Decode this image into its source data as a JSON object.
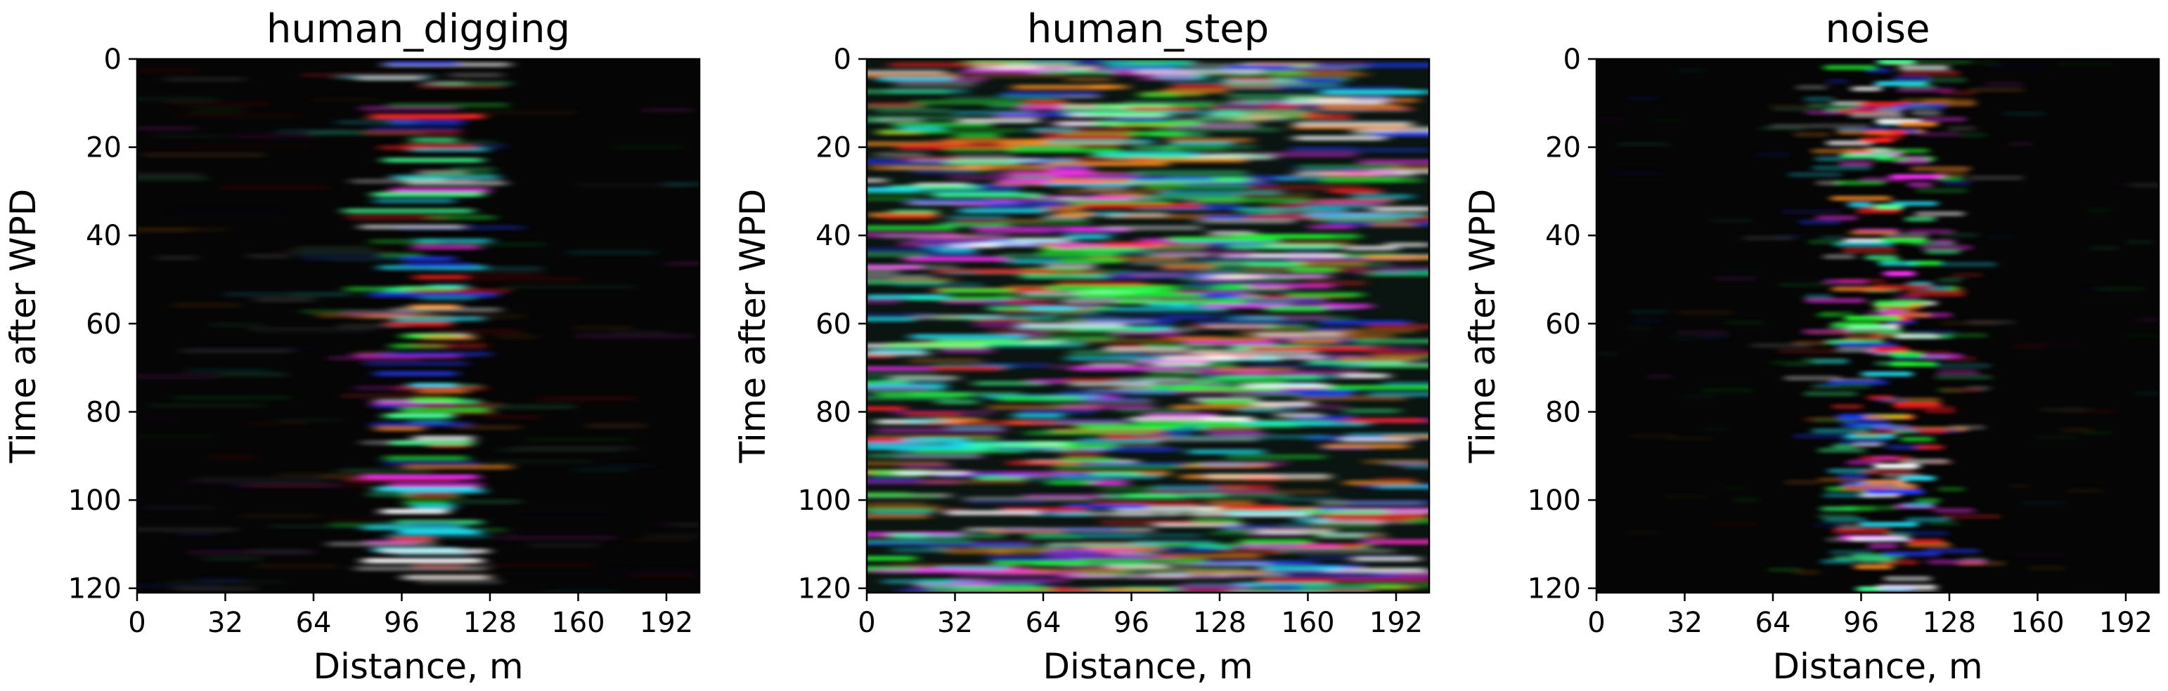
{
  "chart_data": [
    {
      "type": "heatmap",
      "title": "human_digging",
      "xlabel": "Distance, m",
      "ylabel": "Time after WPD",
      "xlim": [
        0,
        204
      ],
      "ylim": [
        121,
        0
      ],
      "xticks": [
        "0",
        "32",
        "64",
        "96",
        "128",
        "160",
        "192"
      ],
      "yticks": [
        "0",
        "20",
        "40",
        "60",
        "80",
        "100",
        "120"
      ],
      "pattern": "bright narrow column centered near 96-112 m, faint elsewhere"
    },
    {
      "type": "heatmap",
      "title": "human_step",
      "xlabel": "Distance, m",
      "ylabel": "Time after WPD",
      "xlim": [
        0,
        204
      ],
      "ylim": [
        121,
        0
      ],
      "xticks": [
        "0",
        "32",
        "64",
        "96",
        "128",
        "160",
        "192"
      ],
      "yticks": [
        "0",
        "20",
        "40",
        "60",
        "80",
        "100",
        "120"
      ],
      "pattern": "horizontal streaks spread across full width"
    },
    {
      "type": "heatmap",
      "title": "noise",
      "xlabel": "Distance, m",
      "ylabel": "Time after WPD",
      "xlim": [
        0,
        204
      ],
      "ylim": [
        121,
        0
      ],
      "xticks": [
        "0",
        "32",
        "64",
        "96",
        "128",
        "160",
        "192"
      ],
      "yticks": [
        "0",
        "20",
        "40",
        "60",
        "80",
        "100",
        "120"
      ],
      "pattern": "dense speckle band between about 80 and 130 m"
    }
  ]
}
